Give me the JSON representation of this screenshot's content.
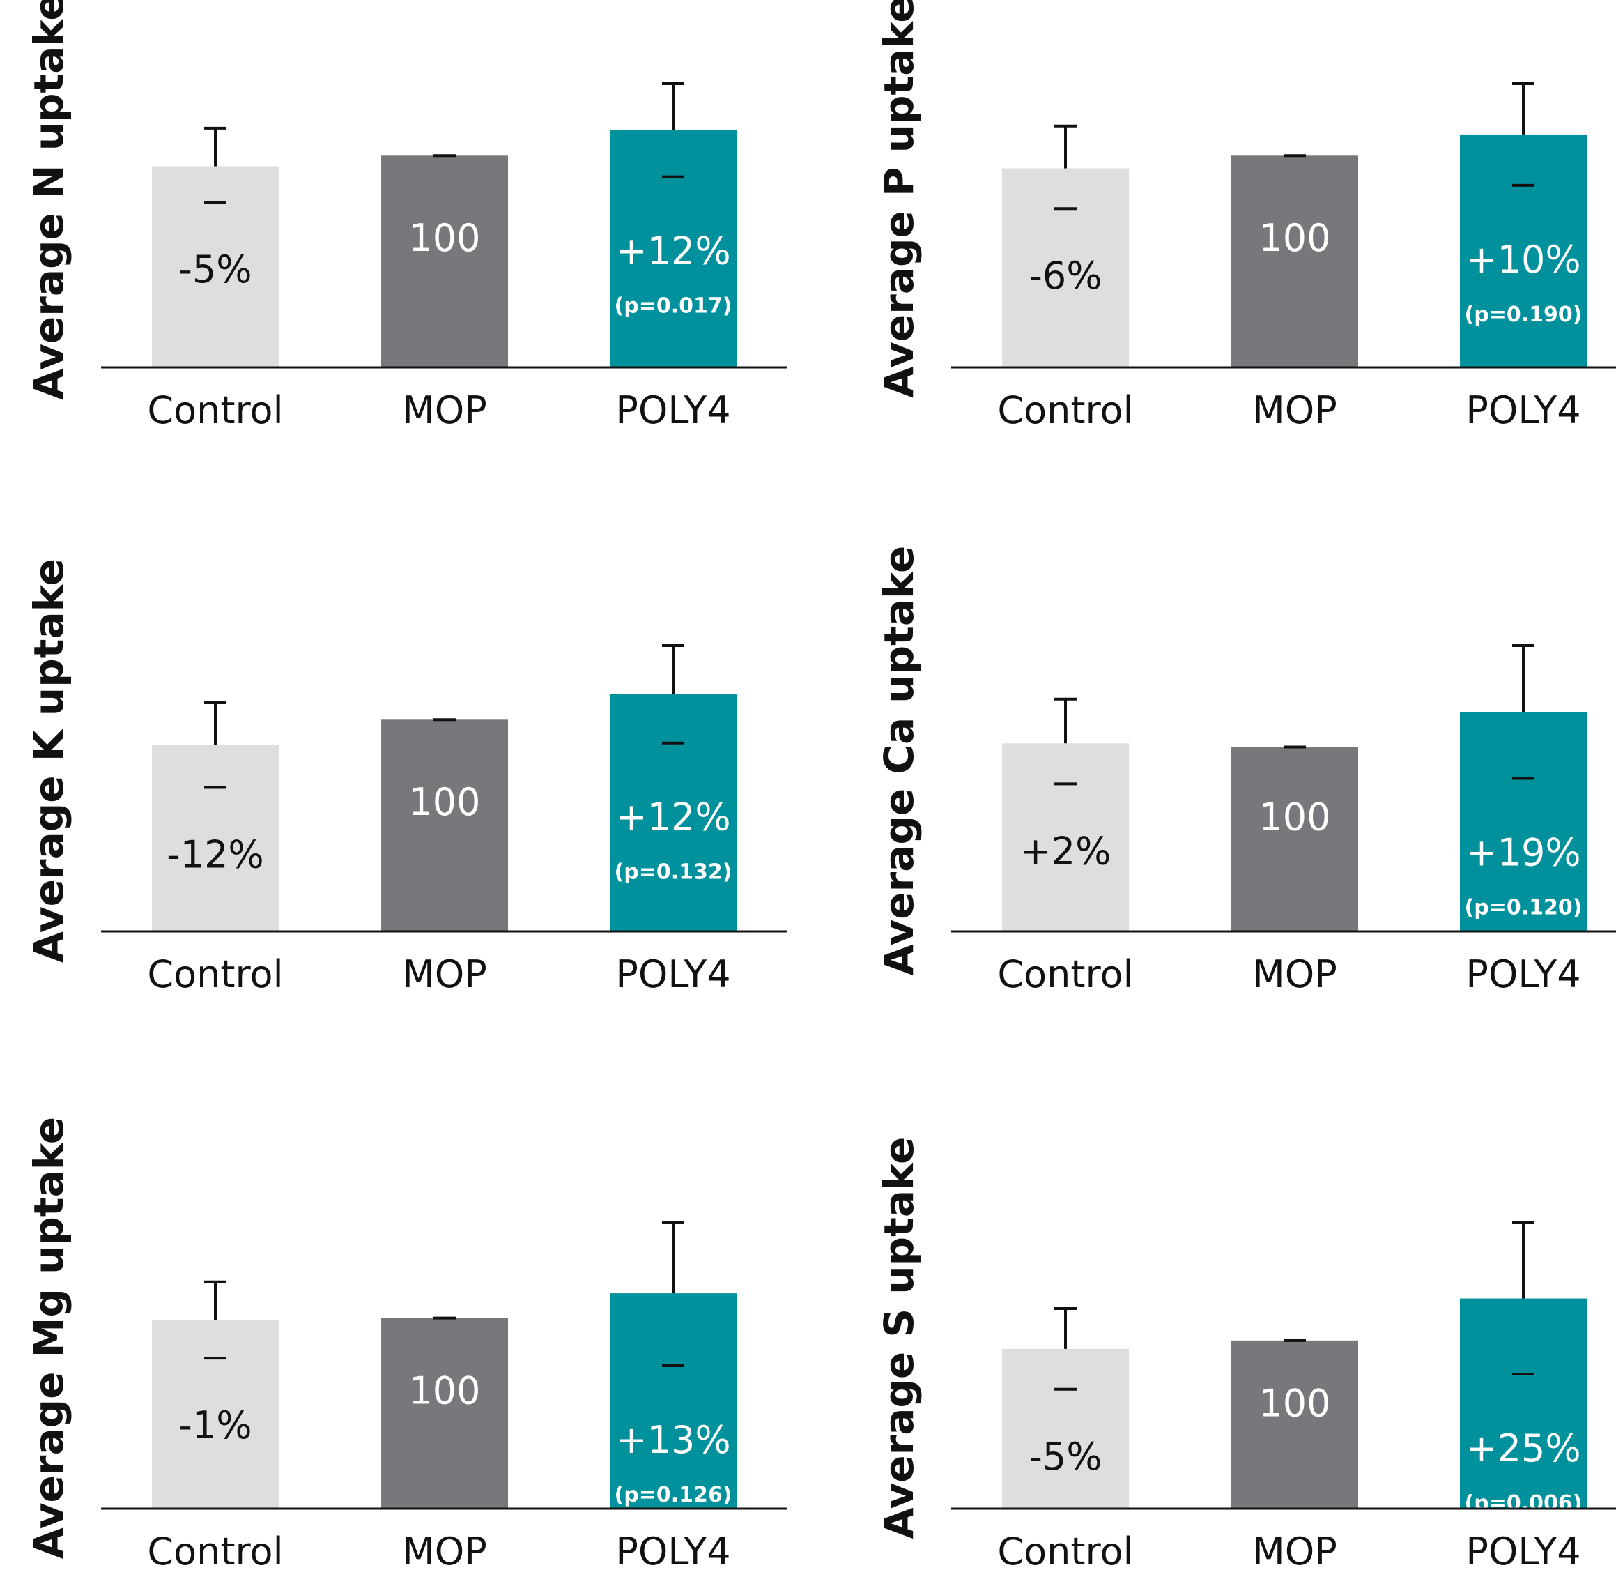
{
  "chart_data": [
    {
      "type": "bar",
      "ylabel": "Average N uptake",
      "categories": [
        "Control",
        "MOP",
        "POLY4"
      ],
      "values": [
        95,
        100,
        112
      ],
      "error_upper": [
        113,
        100,
        134
      ],
      "error_lower": [
        78,
        100,
        90
      ],
      "value_labels": [
        "-5%",
        "100",
        "+12%"
      ],
      "p_values": [
        "",
        "",
        "(p=0.017)"
      ],
      "colors": [
        "#dddee0",
        "#77787c",
        "#00919c"
      ],
      "ylim": [
        0,
        135
      ]
    },
    {
      "type": "bar",
      "ylabel": "Average P uptake",
      "categories": [
        "Control",
        "MOP",
        "POLY4"
      ],
      "values": [
        94,
        100,
        110
      ],
      "error_upper": [
        114,
        100,
        134
      ],
      "error_lower": [
        75,
        100,
        86
      ],
      "value_labels": [
        "-6%",
        "100",
        "+10%"
      ],
      "p_values": [
        "",
        "",
        "(p=0.190)"
      ],
      "colors": [
        "#dddee0",
        "#77787c",
        "#00919c"
      ],
      "ylim": [
        0,
        135
      ]
    },
    {
      "type": "bar",
      "ylabel": "Average K uptake",
      "categories": [
        "Control",
        "MOP",
        "POLY4"
      ],
      "values": [
        88,
        100,
        112
      ],
      "error_upper": [
        108,
        100,
        135
      ],
      "error_lower": [
        68,
        100,
        89
      ],
      "value_labels": [
        "-12%",
        "100",
        "+12%"
      ],
      "p_values": [
        "",
        "",
        "(p=0.132)"
      ],
      "colors": [
        "#dddee0",
        "#77787c",
        "#00919c"
      ],
      "ylim": [
        0,
        135
      ]
    },
    {
      "type": "bar",
      "ylabel": "Average Ca uptake",
      "categories": [
        "Control",
        "MOP",
        "POLY4"
      ],
      "values": [
        102,
        100,
        119
      ],
      "error_upper": [
        126,
        100,
        155
      ],
      "error_lower": [
        80,
        100,
        83
      ],
      "value_labels": [
        "+2%",
        "100",
        "+19%"
      ],
      "p_values": [
        "",
        "",
        "(p=0.120)"
      ],
      "colors": [
        "#dddee0",
        "#77787c",
        "#00919c"
      ],
      "ylim": [
        0,
        155
      ]
    },
    {
      "type": "bar",
      "ylabel": "Average Mg uptake",
      "categories": [
        "Control",
        "MOP",
        "POLY4"
      ],
      "values": [
        99,
        100,
        113
      ],
      "error_upper": [
        119,
        100,
        150
      ],
      "error_lower": [
        79,
        100,
        75
      ],
      "value_labels": [
        "-1%",
        "100",
        "+13%"
      ],
      "p_values": [
        "",
        "",
        "(p=0.126)"
      ],
      "colors": [
        "#dddee0",
        "#77787c",
        "#00919c"
      ],
      "ylim": [
        0,
        150
      ]
    },
    {
      "type": "bar",
      "ylabel": "Average S uptake",
      "categories": [
        "Control",
        "MOP",
        "POLY4"
      ],
      "values": [
        95,
        100,
        125
      ],
      "error_upper": [
        119,
        100,
        170
      ],
      "error_lower": [
        71,
        100,
        80
      ],
      "value_labels": [
        "-5%",
        "100",
        "+25%"
      ],
      "p_values": [
        "",
        "",
        "(p=0.006)"
      ],
      "colors": [
        "#dddee0",
        "#77787c",
        "#00919c"
      ],
      "ylim": [
        0,
        170
      ]
    }
  ]
}
